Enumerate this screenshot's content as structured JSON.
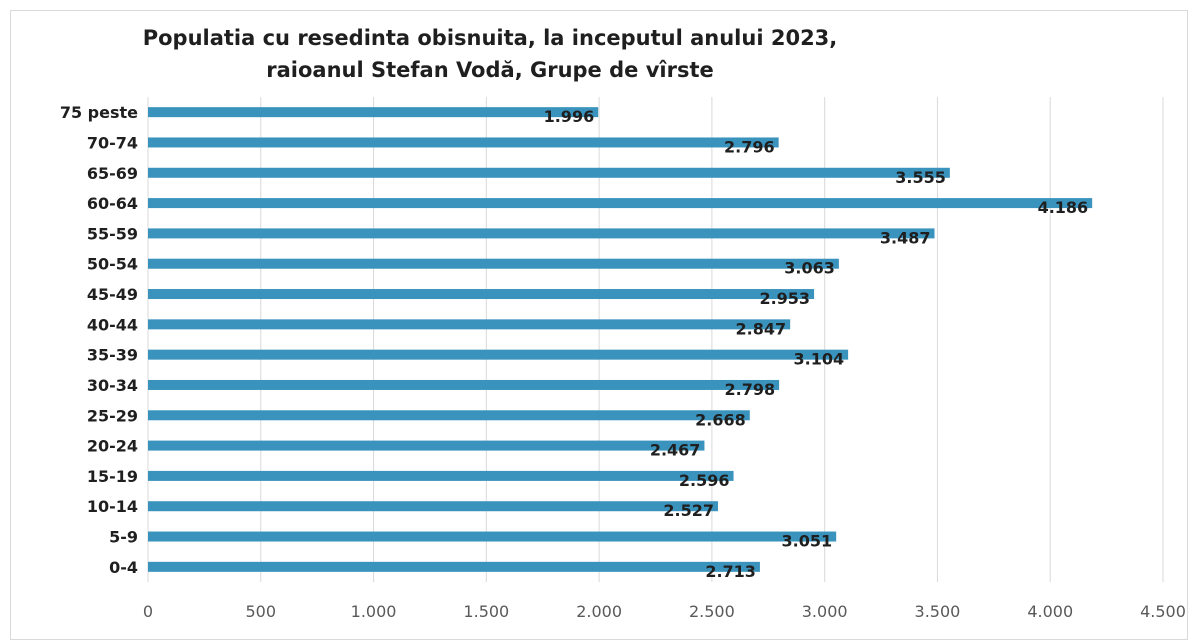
{
  "chart_data": {
    "type": "bar",
    "orientation": "horizontal",
    "title": "Populatia cu resedinta obisnuita, la inceputul anului 2023,",
    "subtitle": "raioanul Stefan Vodă, Grupe de vîrste",
    "categories": [
      "0-4",
      "5-9",
      "10-14",
      "15-19",
      "20-24",
      "25-29",
      "30-34",
      "35-39",
      "40-44",
      "45-49",
      "50-54",
      "55-59",
      "60-64",
      "65-69",
      "70-74",
      "75 peste"
    ],
    "values": [
      2713,
      3051,
      2527,
      2596,
      2467,
      2668,
      2798,
      3104,
      2847,
      2953,
      3063,
      3487,
      4186,
      3555,
      2796,
      1996
    ],
    "value_labels": [
      "2.713",
      "3.051",
      "2.527",
      "2.596",
      "2.467",
      "2.668",
      "2.798",
      "3.104",
      "2.847",
      "2.953",
      "3.063",
      "3.487",
      "4.186",
      "3.555",
      "2.796",
      "1.996"
    ],
    "xlim": [
      0,
      4500
    ],
    "x_ticks": [
      0,
      500,
      1000,
      1500,
      2000,
      2500,
      3000,
      3500,
      4000,
      4500
    ],
    "x_tick_labels": [
      "0",
      "500",
      "1.000",
      "1.500",
      "2.000",
      "2.500",
      "3.000",
      "3.500",
      "4.000",
      "4.500"
    ],
    "grid": "vertical",
    "legend": "none",
    "bar_color": "#3a93bd"
  },
  "colors": {
    "bar": "#3a93bd",
    "grid": "#d9d9d9",
    "text": "#1f1f1f",
    "axis_text": "#595959"
  }
}
